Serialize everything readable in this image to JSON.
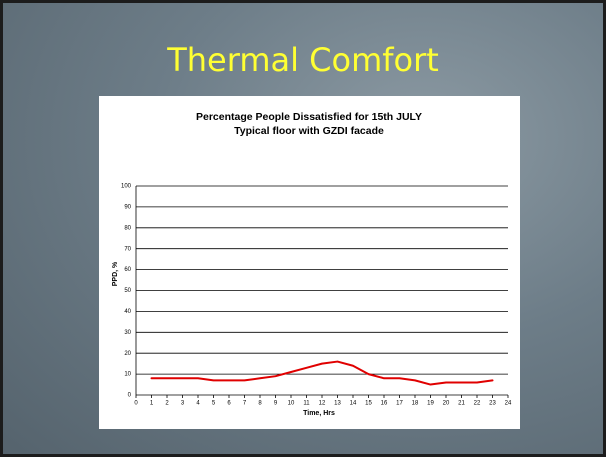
{
  "slide": {
    "title": "Thermal Comfort"
  },
  "chart_data": {
    "type": "line",
    "title": "Percentage People Dissatisfied for 15th JULY",
    "subtitle": "Typical floor with GZDI facade",
    "y_label": "PPD, %",
    "x_label": "Time, Hrs",
    "x": [
      1,
      2,
      3,
      4,
      5,
      6,
      7,
      8,
      9,
      10,
      11,
      12,
      13,
      14,
      15,
      16,
      17,
      18,
      19,
      20,
      21,
      22,
      23
    ],
    "series": [
      {
        "color": "#e00000",
        "values": [
          8,
          8,
          8,
          8,
          7,
          7,
          7,
          8,
          9,
          11,
          13,
          15,
          16,
          14,
          10,
          8,
          8,
          7,
          5,
          6,
          6,
          6,
          7
        ]
      }
    ],
    "xlim": [
      0,
      24
    ],
    "xticks": [
      0,
      1,
      2,
      3,
      4,
      5,
      6,
      7,
      8,
      9,
      10,
      11,
      12,
      13,
      14,
      15,
      16,
      17,
      18,
      19,
      20,
      21,
      22,
      23,
      24
    ],
    "ylim": [
      0,
      100
    ],
    "yticks": [
      0,
      10,
      20,
      30,
      40,
      50,
      60,
      70,
      80,
      90,
      100
    ],
    "grid": true
  }
}
